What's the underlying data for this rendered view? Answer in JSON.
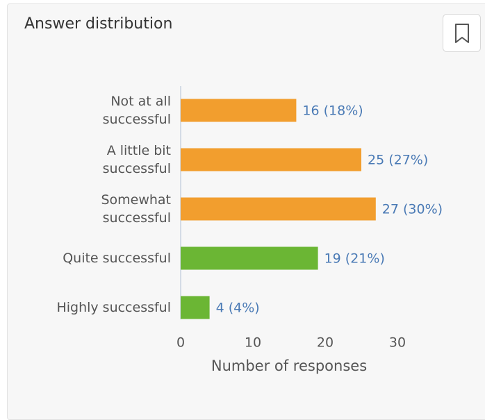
{
  "chart_data": {
    "type": "hbar",
    "title": "Answer distribution",
    "categories": [
      "Not at all\nsuccessful",
      "A little bit\nsuccessful",
      "Somewhat\nsuccessful",
      "Quite successful",
      "Highly successful"
    ],
    "values": [
      16,
      25,
      27,
      19,
      4
    ],
    "value_labels": [
      "16 (18%)",
      "25 (27%)",
      "27 (30%)",
      "19 (21%)",
      "4 (4%)"
    ],
    "colors": [
      "#f29e2e",
      "#f29e2e",
      "#f29e2e",
      "#6bb634",
      "#6bb634"
    ],
    "xlim": [
      0,
      30
    ],
    "xticks": [
      0,
      10,
      20,
      30
    ],
    "xlabel": "Number of responses"
  }
}
